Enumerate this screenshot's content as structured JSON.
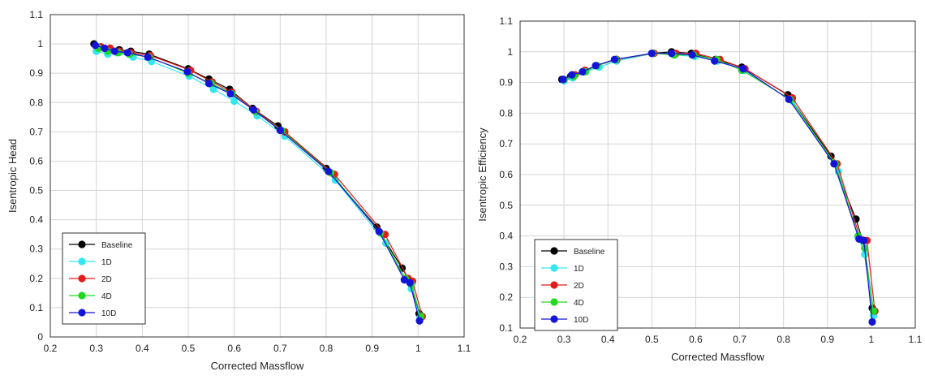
{
  "chart_data": [
    {
      "type": "line",
      "xlabel": "Corrected Massflow",
      "ylabel": "Isentropic Head",
      "xlim": [
        0.2,
        1.1
      ],
      "ylim": [
        0,
        1.1
      ],
      "xticks": [
        0.2,
        0.3,
        0.4,
        0.5,
        0.6,
        0.7,
        0.8,
        0.9,
        1,
        1.1
      ],
      "yticks": [
        0,
        0.1,
        0.2,
        0.3,
        0.4,
        0.5,
        0.6,
        0.7,
        0.8,
        0.9,
        1,
        1.1
      ],
      "grid": true,
      "legend_position": "bottom-left",
      "series": [
        {
          "name": "Baseline",
          "color": "#000000",
          "x": [
            0.295,
            0.31,
            0.33,
            0.35,
            0.375,
            0.415,
            0.5,
            0.545,
            0.59,
            0.64,
            0.695,
            0.8,
            0.91,
            0.965,
            0.98,
            1.002
          ],
          "y": [
            1.0,
            0.99,
            0.985,
            0.98,
            0.975,
            0.965,
            0.915,
            0.88,
            0.845,
            0.78,
            0.72,
            0.575,
            0.375,
            0.235,
            0.195,
            0.08
          ]
        },
        {
          "name": "1D",
          "color": "#33e6f2",
          "x": [
            0.3,
            0.325,
            0.345,
            0.38,
            0.42,
            0.502,
            0.555,
            0.6,
            0.65,
            0.71,
            0.82,
            0.93,
            0.97,
            0.985,
            1.004
          ],
          "y": [
            0.975,
            0.965,
            0.97,
            0.955,
            0.94,
            0.89,
            0.845,
            0.805,
            0.755,
            0.685,
            0.535,
            0.32,
            0.195,
            0.165,
            0.065
          ]
        },
        {
          "name": "2D",
          "color": "#e21c1c",
          "x": [
            0.31,
            0.33,
            0.35,
            0.375,
            0.418,
            0.505,
            0.552,
            0.595,
            0.648,
            0.71,
            0.818,
            0.928,
            0.978,
            0.988,
            1.009
          ],
          "y": [
            0.99,
            0.985,
            0.975,
            0.97,
            0.96,
            0.91,
            0.87,
            0.835,
            0.77,
            0.7,
            0.555,
            0.35,
            0.2,
            0.19,
            0.07
          ]
        },
        {
          "name": "4D",
          "color": "#22d622",
          "x": [
            0.305,
            0.325,
            0.348,
            0.372,
            0.415,
            0.5,
            0.55,
            0.595,
            0.645,
            0.703,
            0.81,
            0.918,
            0.972,
            0.985,
            1.006
          ],
          "y": [
            0.985,
            0.975,
            0.97,
            0.965,
            0.955,
            0.9,
            0.865,
            0.83,
            0.77,
            0.705,
            0.56,
            0.355,
            0.2,
            0.18,
            0.07
          ]
        },
        {
          "name": "10D",
          "color": "#1414d9",
          "x": [
            0.298,
            0.318,
            0.34,
            0.368,
            0.412,
            0.498,
            0.545,
            0.592,
            0.642,
            0.7,
            0.805,
            0.915,
            0.97,
            0.982,
            1.003
          ],
          "y": [
            0.995,
            0.985,
            0.975,
            0.97,
            0.955,
            0.905,
            0.865,
            0.83,
            0.775,
            0.705,
            0.565,
            0.36,
            0.195,
            0.185,
            0.055
          ]
        }
      ]
    },
    {
      "type": "line",
      "xlabel": "Corrected Massflow",
      "ylabel": "Isentropic Efficiency",
      "xlim": [
        0.2,
        1.1
      ],
      "ylim": [
        0.1,
        1.1
      ],
      "xticks": [
        0.2,
        0.3,
        0.4,
        0.5,
        0.6,
        0.7,
        0.8,
        0.9,
        1,
        1.1
      ],
      "yticks": [
        0.1,
        0.2,
        0.3,
        0.4,
        0.5,
        0.6,
        0.7,
        0.8,
        0.9,
        1,
        1.1
      ],
      "grid": true,
      "legend_position": "bottom-left",
      "series": [
        {
          "name": "Baseline",
          "color": "#000000",
          "x": [
            0.295,
            0.315,
            0.345,
            0.375,
            0.42,
            0.5,
            0.545,
            0.59,
            0.645,
            0.705,
            0.81,
            0.908,
            0.965,
            0.98,
            1.002
          ],
          "y": [
            0.91,
            0.92,
            0.935,
            0.955,
            0.975,
            0.995,
            1.0,
            0.995,
            0.975,
            0.95,
            0.86,
            0.66,
            0.455,
            0.385,
            0.165
          ]
        },
        {
          "name": "1D",
          "color": "#33e6f2",
          "x": [
            0.3,
            0.32,
            0.35,
            0.38,
            0.42,
            0.505,
            0.552,
            0.598,
            0.65,
            0.71,
            0.82,
            0.925,
            0.97,
            0.985,
            1.005
          ],
          "y": [
            0.905,
            0.915,
            0.935,
            0.95,
            0.97,
            0.995,
            0.99,
            0.985,
            0.97,
            0.94,
            0.84,
            0.61,
            0.395,
            0.34,
            0.14
          ]
        },
        {
          "name": "2D",
          "color": "#e21c1c",
          "x": [
            0.3,
            0.325,
            0.348,
            0.375,
            0.42,
            0.505,
            0.555,
            0.6,
            0.655,
            0.712,
            0.82,
            0.922,
            0.975,
            0.99,
            1.008
          ],
          "y": [
            0.91,
            0.925,
            0.94,
            0.955,
            0.975,
            0.995,
            0.995,
            0.995,
            0.975,
            0.945,
            0.85,
            0.635,
            0.39,
            0.385,
            0.155
          ]
        },
        {
          "name": "4D",
          "color": "#22d622",
          "x": [
            0.3,
            0.322,
            0.348,
            0.375,
            0.418,
            0.502,
            0.55,
            0.595,
            0.648,
            0.705,
            0.815,
            0.918,
            0.97,
            0.985,
            1.005
          ],
          "y": [
            0.91,
            0.92,
            0.935,
            0.955,
            0.975,
            0.995,
            0.99,
            0.99,
            0.975,
            0.94,
            0.845,
            0.635,
            0.4,
            0.36,
            0.155
          ]
        },
        {
          "name": "10D",
          "color": "#1414d9",
          "x": [
            0.298,
            0.318,
            0.342,
            0.372,
            0.415,
            0.5,
            0.545,
            0.592,
            0.643,
            0.708,
            0.812,
            0.915,
            0.972,
            0.983,
            1.002
          ],
          "y": [
            0.91,
            0.925,
            0.935,
            0.955,
            0.975,
            0.995,
            0.995,
            0.99,
            0.97,
            0.945,
            0.845,
            0.635,
            0.39,
            0.385,
            0.12
          ]
        }
      ]
    }
  ]
}
